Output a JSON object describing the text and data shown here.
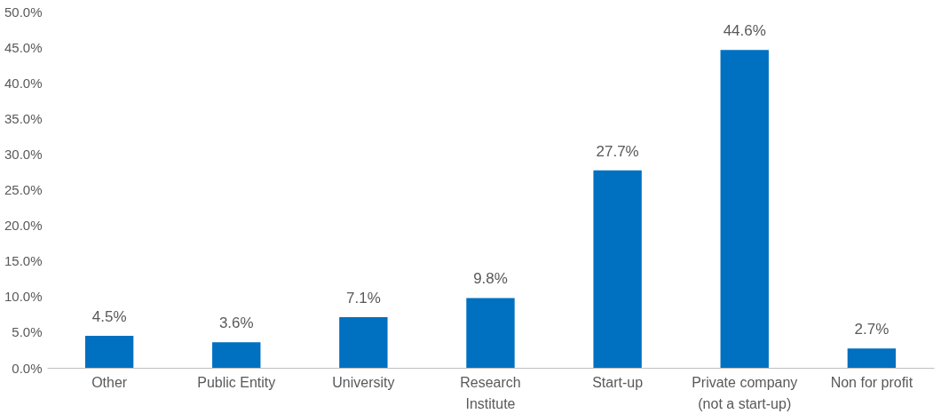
{
  "chart_data": {
    "type": "bar",
    "categories": [
      "Other",
      "Public Entity",
      "University",
      "Research Institute",
      "Start-up",
      "Private company (not a start-up)",
      "Non for profit"
    ],
    "values": [
      4.5,
      3.6,
      7.1,
      9.8,
      27.7,
      44.6,
      2.7
    ],
    "value_labels": [
      "4.5%",
      "3.6%",
      "7.1%",
      "9.8%",
      "27.7%",
      "44.6%",
      "2.7%"
    ],
    "color": "#0070c0",
    "ylim": [
      0,
      50
    ],
    "yticks": [
      {
        "value": 0,
        "label": "0.0%"
      },
      {
        "value": 5,
        "label": "5.0%"
      },
      {
        "value": 10,
        "label": "10.0%"
      },
      {
        "value": 15,
        "label": "15.0%"
      },
      {
        "value": 20,
        "label": "20.0%"
      },
      {
        "value": 25,
        "label": "25.0%"
      },
      {
        "value": 30,
        "label": "30.0%"
      },
      {
        "value": 35,
        "label": "35.0%"
      },
      {
        "value": 40,
        "label": "40.0%"
      },
      {
        "value": 45,
        "label": "45.0%"
      },
      {
        "value": 50,
        "label": "50.0%"
      }
    ],
    "grid": false
  }
}
